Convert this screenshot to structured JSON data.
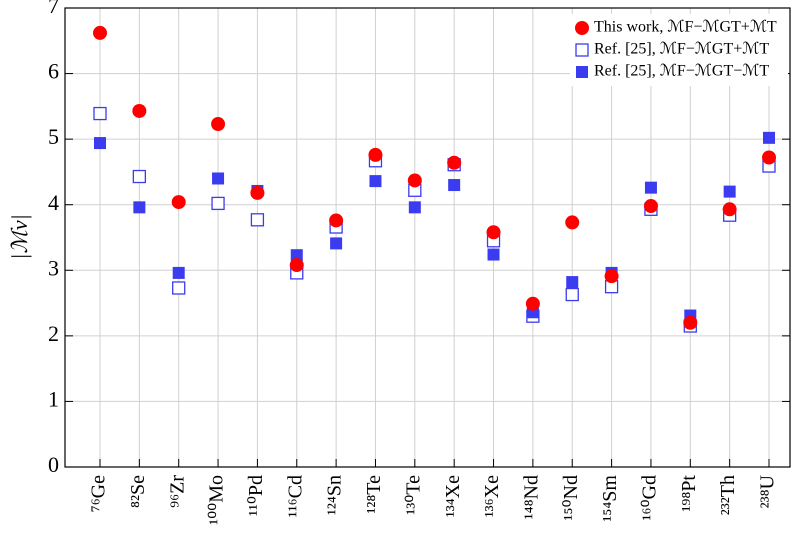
{
  "chart_data": {
    "type": "scatter",
    "ylabel": "|ℳν|",
    "categories": [
      "⁷⁶Ge",
      "⁸²Se",
      "⁹⁶Zr",
      "¹⁰⁰Mo",
      "¹¹⁰Pd",
      "¹¹⁶Cd",
      "¹²⁴Sn",
      "¹²⁸Te",
      "¹³⁰Te",
      "¹³⁴Xe",
      "¹³⁶Xe",
      "¹⁴⁸Nd",
      "¹⁵⁰Nd",
      "¹⁵⁴Sm",
      "¹⁶⁰Gd",
      "¹⁹⁸Pt",
      "²³²Th",
      "²³⁸U"
    ],
    "series": [
      {
        "name": "This work, ℳF−ℳGT+ℳT",
        "color": "#ff0000",
        "marker": "circle",
        "values": [
          6.62,
          5.43,
          4.04,
          5.23,
          4.18,
          3.08,
          3.76,
          4.76,
          4.37,
          4.64,
          3.58,
          2.49,
          3.73,
          2.91,
          3.98,
          2.2,
          3.93,
          4.72
        ]
      },
      {
        "name": "Ref. [25],   ℳF−ℳGT+ℳT",
        "color": "#3b3bf0",
        "marker": "square-open",
        "values": [
          5.39,
          4.43,
          2.73,
          4.02,
          3.77,
          2.96,
          3.66,
          4.67,
          4.22,
          4.61,
          3.45,
          2.3,
          2.63,
          2.75,
          3.93,
          2.15,
          3.84,
          4.59
        ]
      },
      {
        "name": "Ref. [25],   ℳF−ℳGT−ℳT",
        "color": "#3b3bf0",
        "marker": "square",
        "values": [
          4.94,
          3.96,
          2.96,
          4.4,
          4.21,
          3.23,
          3.41,
          4.36,
          3.96,
          4.3,
          3.24,
          2.36,
          2.82,
          2.96,
          4.26,
          2.31,
          4.2,
          5.02
        ]
      }
    ],
    "ylim": [
      0,
      7
    ],
    "yticks": [
      0,
      1,
      2,
      3,
      4,
      5,
      6,
      7
    ],
    "grid": true,
    "legend": "upper right"
  }
}
